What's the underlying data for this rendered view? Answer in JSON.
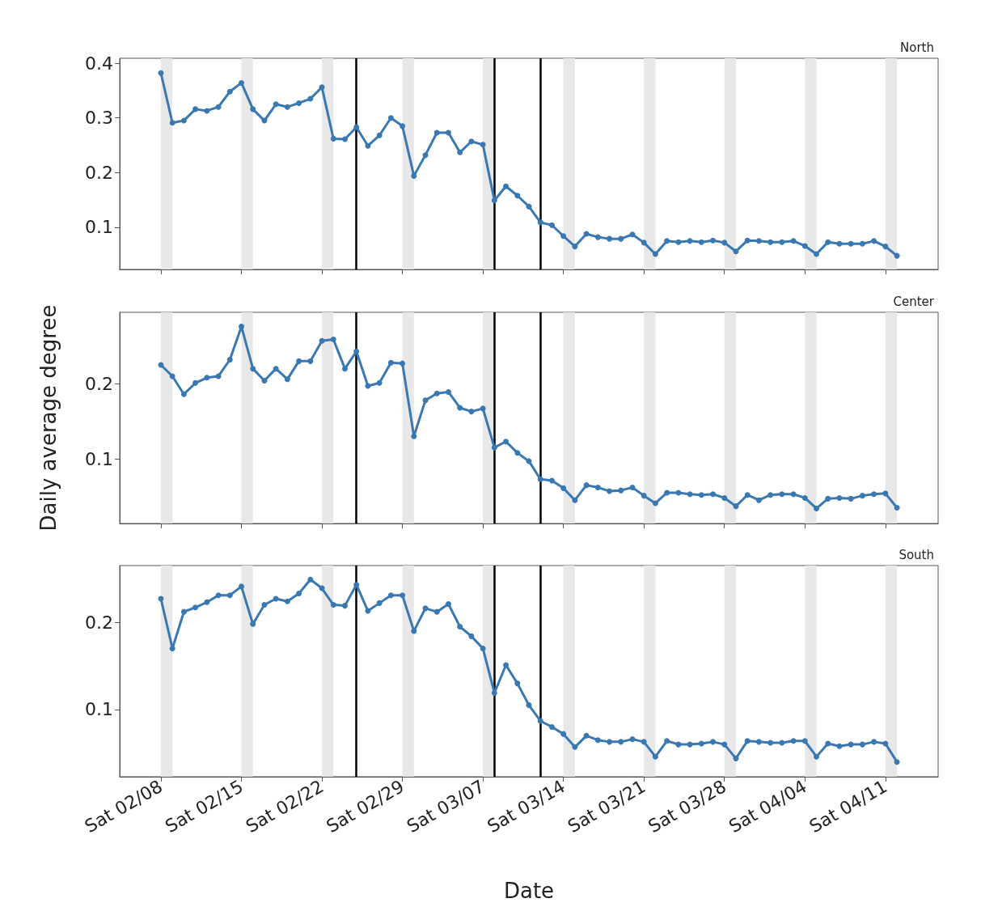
{
  "chart_data": [
    {
      "type": "line",
      "title": "North",
      "tick_labels": "y",
      "marker": "circle",
      "line_style": "solid",
      "x": [
        "--02-08",
        "--02-09",
        "--02-10",
        "--02-11",
        "--02-12",
        "--02-13",
        "--02-14",
        "--02-15",
        "--02-16",
        "--02-17",
        "--02-18",
        "--02-19",
        "--02-20",
        "--02-21",
        "--02-22",
        "--02-23",
        "--02-24",
        "--02-25",
        "--02-26",
        "--02-27",
        "--02-28",
        "--02-29",
        "--03-01",
        "--03-02",
        "--03-03",
        "--03-04",
        "--03-05",
        "--03-06",
        "--03-07",
        "--03-08",
        "--03-09",
        "--03-10",
        "--03-11",
        "--03-12",
        "--03-13",
        "--03-14",
        "--03-15",
        "--03-16",
        "--03-17",
        "--03-18",
        "--03-19",
        "--03-20",
        "--03-21",
        "--03-22",
        "--03-23",
        "--03-24",
        "--03-25",
        "--03-26",
        "--03-27",
        "--03-28",
        "--03-29",
        "--03-30",
        "--03-31",
        "--04-01",
        "--04-02",
        "--04-03",
        "--04-04",
        "--04-05",
        "--04-06",
        "--04-07",
        "--04-08",
        "--04-09",
        "--04-10",
        "--04-11",
        "--04-12"
      ],
      "series": [
        {
          "color": "#3a78b2",
          "values": [
            0.382,
            0.291,
            0.295,
            0.316,
            0.313,
            0.32,
            0.348,
            0.364,
            0.316,
            0.295,
            0.325,
            0.32,
            0.327,
            0.335,
            0.356,
            0.262,
            0.261,
            0.283,
            0.249,
            0.268,
            0.3,
            0.285,
            0.194,
            0.232,
            0.273,
            0.273,
            0.237,
            0.257,
            0.251,
            0.149,
            0.175,
            0.158,
            0.138,
            0.109,
            0.104,
            0.084,
            0.065,
            0.088,
            0.082,
            0.079,
            0.079,
            0.087,
            0.072,
            0.051,
            0.075,
            0.073,
            0.075,
            0.073,
            0.076,
            0.072,
            0.056,
            0.076,
            0.075,
            0.073,
            0.073,
            0.075,
            0.066,
            0.051,
            0.073,
            0.07,
            0.07,
            0.07,
            0.075,
            0.065,
            0.048
          ]
        }
      ],
      "xlim": [
        "--02-04T10:00",
        "--04-15T14:00"
      ],
      "xticks": [
        "--02-08",
        "--02-15",
        "--02-22",
        "--02-29",
        "--03-07",
        "--03-14",
        "--03-21",
        "--03-28",
        "--04-04",
        "--04-11"
      ],
      "ylim": [
        0.023,
        0.409
      ],
      "yticks": [
        0.1,
        0.2,
        0.3,
        0.4
      ],
      "ref_lines": [
        {
          "axis": "x",
          "value": "--02-25",
          "color": "#000000"
        },
        {
          "axis": "x",
          "value": "--03-08",
          "color": "#000000"
        },
        {
          "axis": "x",
          "value": "--03-12",
          "color": "#000000"
        }
      ],
      "bands": [
        {
          "axis": "x",
          "from": "--02-08",
          "to": "--02-09",
          "color": "#e8e8e8"
        },
        {
          "axis": "x",
          "from": "--02-15",
          "to": "--02-16",
          "color": "#e8e8e8"
        },
        {
          "axis": "x",
          "from": "--02-22",
          "to": "--02-23",
          "color": "#e8e8e8"
        },
        {
          "axis": "x",
          "from": "--02-29",
          "to": "--03-01",
          "color": "#e8e8e8"
        },
        {
          "axis": "x",
          "from": "--03-07",
          "to": "--03-08",
          "color": "#e8e8e8"
        },
        {
          "axis": "x",
          "from": "--03-14",
          "to": "--03-15",
          "color": "#e8e8e8"
        },
        {
          "axis": "x",
          "from": "--03-21",
          "to": "--03-22",
          "color": "#e8e8e8"
        },
        {
          "axis": "x",
          "from": "--03-28",
          "to": "--03-29",
          "color": "#e8e8e8"
        },
        {
          "axis": "x",
          "from": "--04-04",
          "to": "--04-05",
          "color": "#e8e8e8"
        },
        {
          "axis": "x",
          "from": "--04-11",
          "to": "--04-12",
          "color": "#e8e8e8"
        }
      ]
    },
    {
      "type": "line",
      "title": "Center",
      "ylabel": "Daily average degree",
      "tick_labels": "y",
      "marker": "circle",
      "line_style": "solid",
      "x": [
        "--02-08",
        "--02-09",
        "--02-10",
        "--02-11",
        "--02-12",
        "--02-13",
        "--02-14",
        "--02-15",
        "--02-16",
        "--02-17",
        "--02-18",
        "--02-19",
        "--02-20",
        "--02-21",
        "--02-22",
        "--02-23",
        "--02-24",
        "--02-25",
        "--02-26",
        "--02-27",
        "--02-28",
        "--02-29",
        "--03-01",
        "--03-02",
        "--03-03",
        "--03-04",
        "--03-05",
        "--03-06",
        "--03-07",
        "--03-08",
        "--03-09",
        "--03-10",
        "--03-11",
        "--03-12",
        "--03-13",
        "--03-14",
        "--03-15",
        "--03-16",
        "--03-17",
        "--03-18",
        "--03-19",
        "--03-20",
        "--03-21",
        "--03-22",
        "--03-23",
        "--03-24",
        "--03-25",
        "--03-26",
        "--03-27",
        "--03-28",
        "--03-29",
        "--03-30",
        "--03-31",
        "--04-01",
        "--04-02",
        "--04-03",
        "--04-04",
        "--04-05",
        "--04-06",
        "--04-07",
        "--04-08",
        "--04-09",
        "--04-10",
        "--04-11",
        "--04-12"
      ],
      "series": [
        {
          "color": "#3a78b2",
          "values": [
            0.225,
            0.21,
            0.186,
            0.201,
            0.208,
            0.21,
            0.232,
            0.276,
            0.22,
            0.204,
            0.22,
            0.206,
            0.23,
            0.23,
            0.257,
            0.259,
            0.22,
            0.243,
            0.197,
            0.201,
            0.228,
            0.227,
            0.13,
            0.178,
            0.187,
            0.189,
            0.168,
            0.163,
            0.167,
            0.115,
            0.123,
            0.108,
            0.097,
            0.073,
            0.071,
            0.061,
            0.045,
            0.065,
            0.062,
            0.057,
            0.058,
            0.062,
            0.051,
            0.041,
            0.055,
            0.055,
            0.053,
            0.052,
            0.053,
            0.048,
            0.037,
            0.052,
            0.045,
            0.052,
            0.053,
            0.053,
            0.048,
            0.034,
            0.047,
            0.048,
            0.047,
            0.051,
            0.053,
            0.054,
            0.035
          ]
        }
      ],
      "xlim": [
        "--02-04T10:00",
        "--04-15T14:00"
      ],
      "xticks": [
        "--02-08",
        "--02-15",
        "--02-22",
        "--02-29",
        "--03-07",
        "--03-14",
        "--03-21",
        "--03-28",
        "--04-04",
        "--04-11"
      ],
      "ylim": [
        0.014,
        0.295
      ],
      "yticks": [
        0.1,
        0.2
      ],
      "ref_lines": [
        {
          "axis": "x",
          "value": "--02-25",
          "color": "#000000"
        },
        {
          "axis": "x",
          "value": "--03-08",
          "color": "#000000"
        },
        {
          "axis": "x",
          "value": "--03-12",
          "color": "#000000"
        }
      ],
      "bands": [
        {
          "axis": "x",
          "from": "--02-08",
          "to": "--02-09",
          "color": "#e8e8e8"
        },
        {
          "axis": "x",
          "from": "--02-15",
          "to": "--02-16",
          "color": "#e8e8e8"
        },
        {
          "axis": "x",
          "from": "--02-22",
          "to": "--02-23",
          "color": "#e8e8e8"
        },
        {
          "axis": "x",
          "from": "--02-29",
          "to": "--03-01",
          "color": "#e8e8e8"
        },
        {
          "axis": "x",
          "from": "--03-07",
          "to": "--03-08",
          "color": "#e8e8e8"
        },
        {
          "axis": "x",
          "from": "--03-14",
          "to": "--03-15",
          "color": "#e8e8e8"
        },
        {
          "axis": "x",
          "from": "--03-21",
          "to": "--03-22",
          "color": "#e8e8e8"
        },
        {
          "axis": "x",
          "from": "--03-28",
          "to": "--03-29",
          "color": "#e8e8e8"
        },
        {
          "axis": "x",
          "from": "--04-04",
          "to": "--04-05",
          "color": "#e8e8e8"
        },
        {
          "axis": "x",
          "from": "--04-11",
          "to": "--04-12",
          "color": "#e8e8e8"
        }
      ]
    },
    {
      "type": "line",
      "title": "South",
      "xlabel": "Date",
      "marker": "circle",
      "line_style": "solid",
      "x": [
        "--02-08",
        "--02-09",
        "--02-10",
        "--02-11",
        "--02-12",
        "--02-13",
        "--02-14",
        "--02-15",
        "--02-16",
        "--02-17",
        "--02-18",
        "--02-19",
        "--02-20",
        "--02-21",
        "--02-22",
        "--02-23",
        "--02-24",
        "--02-25",
        "--02-26",
        "--02-27",
        "--02-28",
        "--02-29",
        "--03-01",
        "--03-02",
        "--03-03",
        "--03-04",
        "--03-05",
        "--03-06",
        "--03-07",
        "--03-08",
        "--03-09",
        "--03-10",
        "--03-11",
        "--03-12",
        "--03-13",
        "--03-14",
        "--03-15",
        "--03-16",
        "--03-17",
        "--03-18",
        "--03-19",
        "--03-20",
        "--03-21",
        "--03-22",
        "--03-23",
        "--03-24",
        "--03-25",
        "--03-26",
        "--03-27",
        "--03-28",
        "--03-29",
        "--03-30",
        "--03-31",
        "--04-01",
        "--04-02",
        "--04-03",
        "--04-04",
        "--04-05",
        "--04-06",
        "--04-07",
        "--04-08",
        "--04-09",
        "--04-10",
        "--04-11",
        "--04-12"
      ],
      "series": [
        {
          "color": "#3a78b2",
          "values": [
            0.227,
            0.17,
            0.212,
            0.217,
            0.223,
            0.231,
            0.231,
            0.241,
            0.198,
            0.22,
            0.227,
            0.224,
            0.233,
            0.249,
            0.239,
            0.22,
            0.219,
            0.243,
            0.213,
            0.222,
            0.231,
            0.231,
            0.19,
            0.216,
            0.212,
            0.221,
            0.195,
            0.184,
            0.17,
            0.119,
            0.151,
            0.13,
            0.105,
            0.087,
            0.08,
            0.072,
            0.057,
            0.07,
            0.065,
            0.063,
            0.063,
            0.066,
            0.063,
            0.046,
            0.064,
            0.06,
            0.06,
            0.061,
            0.063,
            0.06,
            0.044,
            0.064,
            0.063,
            0.062,
            0.062,
            0.064,
            0.064,
            0.046,
            0.061,
            0.058,
            0.06,
            0.06,
            0.063,
            0.061,
            0.04
          ]
        }
      ],
      "xlim": [
        "--02-04T10:00",
        "--04-15T14:00"
      ],
      "xticks": [
        {
          "value": "--02-08",
          "label": "Sat 02/08"
        },
        {
          "value": "--02-15",
          "label": "Sat 02/15"
        },
        {
          "value": "--02-22",
          "label": "Sat 02/22"
        },
        {
          "value": "--02-29",
          "label": "Sat 02/29"
        },
        {
          "value": "--03-07",
          "label": "Sat 03/07"
        },
        {
          "value": "--03-14",
          "label": "Sat 03/14"
        },
        {
          "value": "--03-21",
          "label": "Sat 03/21"
        },
        {
          "value": "--03-28",
          "label": "Sat 03/28"
        },
        {
          "value": "--04-04",
          "label": "Sat 04/04"
        },
        {
          "value": "--04-11",
          "label": "Sat 04/11"
        }
      ],
      "ylim": [
        0.023,
        0.265
      ],
      "yticks": [
        0.1,
        0.2
      ],
      "ref_lines": [
        {
          "axis": "x",
          "value": "--02-25",
          "color": "#000000"
        },
        {
          "axis": "x",
          "value": "--03-08",
          "color": "#000000"
        },
        {
          "axis": "x",
          "value": "--03-12",
          "color": "#000000"
        }
      ],
      "bands": [
        {
          "axis": "x",
          "from": "--02-08",
          "to": "--02-09",
          "color": "#e8e8e8"
        },
        {
          "axis": "x",
          "from": "--02-15",
          "to": "--02-16",
          "color": "#e8e8e8"
        },
        {
          "axis": "x",
          "from": "--02-22",
          "to": "--02-23",
          "color": "#e8e8e8"
        },
        {
          "axis": "x",
          "from": "--02-29",
          "to": "--03-01",
          "color": "#e8e8e8"
        },
        {
          "axis": "x",
          "from": "--03-07",
          "to": "--03-08",
          "color": "#e8e8e8"
        },
        {
          "axis": "x",
          "from": "--03-14",
          "to": "--03-15",
          "color": "#e8e8e8"
        },
        {
          "axis": "x",
          "from": "--03-21",
          "to": "--03-22",
          "color": "#e8e8e8"
        },
        {
          "axis": "x",
          "from": "--03-28",
          "to": "--03-29",
          "color": "#e8e8e8"
        },
        {
          "axis": "x",
          "from": "--04-04",
          "to": "--04-05",
          "color": "#e8e8e8"
        },
        {
          "axis": "x",
          "from": "--04-11",
          "to": "--04-12",
          "color": "#e8e8e8"
        }
      ]
    }
  ]
}
